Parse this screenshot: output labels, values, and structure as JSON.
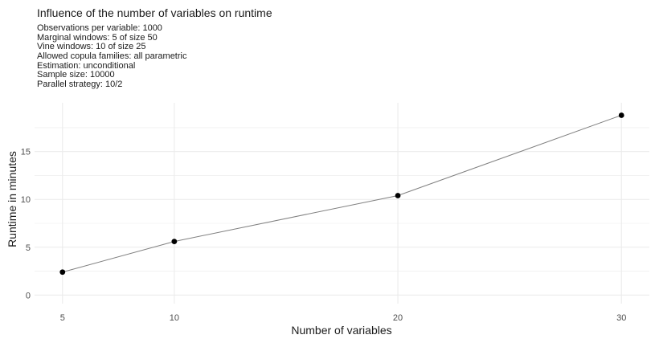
{
  "chart_data": {
    "type": "line",
    "title": "Influence of the number of variables on runtime",
    "subtitle": [
      "Observations per variable: 1000",
      "Marginal windows: 5 of size 50",
      "Vine windows: 10 of size 25",
      "Allowed copula families: all parametric",
      "Estimation: unconditional",
      "Sample size: 10000",
      "Parallel strategy: 10/2"
    ],
    "xlabel": "Number of variables",
    "ylabel": "Runtime in minutes",
    "x": [
      5,
      10,
      20,
      30
    ],
    "y": [
      2.4,
      5.6,
      10.4,
      18.8
    ],
    "xticks": [
      5,
      10,
      20,
      30
    ],
    "yticks": [
      0,
      5,
      10,
      15
    ],
    "xlim": [
      3.75,
      31.25
    ],
    "ylim": [
      -0.9,
      20.1
    ],
    "grid": true,
    "point_color": "#000000",
    "line_color": "#808080",
    "grid_color": "#ebebeb"
  }
}
